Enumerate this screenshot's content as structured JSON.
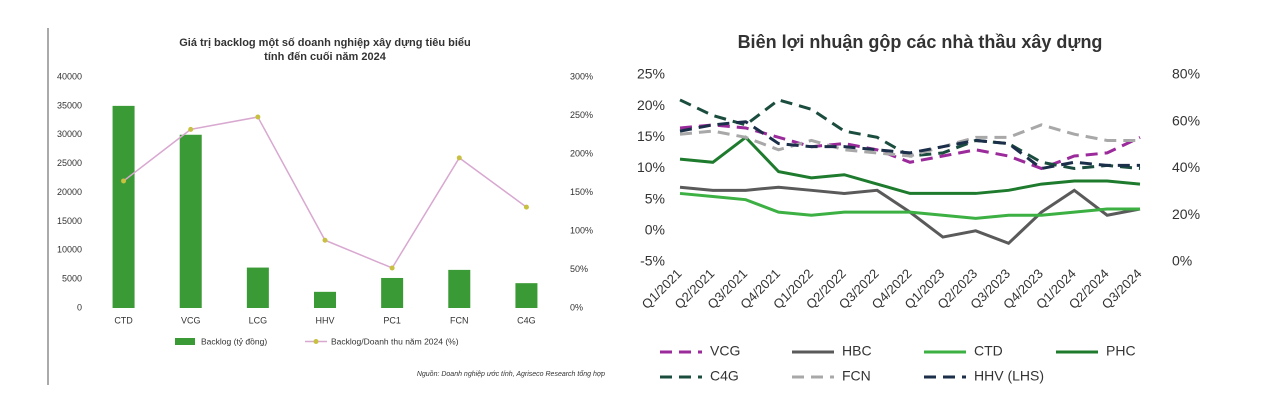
{
  "chart_data": [
    {
      "type": "bar",
      "title": [
        "Giá trị backlog một số doanh nghiệp xây dựng tiêu biểu",
        "tính đến cuối năm 2024"
      ],
      "categories": [
        "CTD",
        "VCG",
        "LCG",
        "HHV",
        "PC1",
        "FCN",
        "C4G"
      ],
      "series": [
        {
          "name": "Backlog (tỷ đồng)",
          "type": "bar",
          "color": "#3a9a35",
          "values": [
            35000,
            30000,
            7000,
            2800,
            5200,
            6600,
            4300
          ]
        },
        {
          "name": "Backlog/Doanh thu năm 2024 (%)",
          "type": "line",
          "axis": "y2",
          "color": "#d8a8d0",
          "marker_color": "#c8c040",
          "values": [
            165,
            232,
            248,
            88,
            52,
            195,
            131
          ]
        }
      ],
      "ylim": [
        0,
        40000
      ],
      "yticks": [
        0,
        5000,
        10000,
        15000,
        20000,
        25000,
        30000,
        35000,
        40000
      ],
      "y2lim": [
        0,
        300
      ],
      "y2ticks": [
        {
          "value": 0,
          "label": "0%"
        },
        {
          "value": 50,
          "label": "50%"
        },
        {
          "value": 100,
          "label": "100%"
        },
        {
          "value": 150,
          "label": "150%"
        },
        {
          "value": 200,
          "label": "200%"
        },
        {
          "value": 250,
          "label": "250%"
        },
        {
          "value": 300,
          "label": "300%"
        }
      ],
      "grid": false,
      "source": "Nguồn: Doanh nghiệp ước tính, Agriseco Research tổng hợp"
    },
    {
      "type": "line",
      "title": "Biên lợi nhuận gộp các nhà thầu xây dựng",
      "categories": [
        "Q1/2021",
        "Q2/2021",
        "Q3/2021",
        "Q4/2021",
        "Q1/2022",
        "Q2/2022",
        "Q3/2022",
        "Q4/2022",
        "Q1/2023",
        "Q2/2023",
        "Q3/2023",
        "Q4/2023",
        "Q1/2024",
        "Q2/2024",
        "Q3/2024"
      ],
      "series": [
        {
          "name": "VCG",
          "color": "#9b2a9b",
          "dashed": true,
          "values": [
            16.5,
            17,
            16.5,
            15,
            13.5,
            14,
            13,
            11,
            12,
            13,
            12,
            10,
            12,
            12.5,
            15
          ]
        },
        {
          "name": "HBC",
          "color": "#5a5a5a",
          "dashed": false,
          "values": [
            7,
            6.5,
            6.5,
            7,
            6.5,
            6,
            6.5,
            3,
            -1,
            0,
            -2,
            3,
            6.5,
            2.5,
            3.5
          ]
        },
        {
          "name": "CTD",
          "color": "#3cb043",
          "dashed": false,
          "values": [
            6,
            5.5,
            5,
            3,
            2.5,
            3,
            3,
            3,
            2.5,
            2,
            2.5,
            2.5,
            3,
            3.5,
            3.5
          ]
        },
        {
          "name": "PHC",
          "color": "#1e7b2e",
          "dashed": false,
          "values": [
            11.5,
            11,
            15,
            9.5,
            8.5,
            9,
            7.5,
            6,
            6,
            6,
            6.5,
            7.5,
            8,
            8,
            7.5
          ]
        },
        {
          "name": "C4G",
          "color": "#1b4d3e",
          "dashed": true,
          "values": [
            21,
            18.5,
            17,
            21,
            19.5,
            16,
            15,
            12,
            12.5,
            14.5,
            14,
            11,
            10,
            10.5,
            10
          ]
        },
        {
          "name": "FCN",
          "color": "#a8a8a8",
          "dashed": true,
          "values": [
            15.5,
            16,
            15,
            13,
            14.5,
            13,
            12.5,
            12,
            13.5,
            15,
            15,
            17,
            15.5,
            14.5,
            14.5
          ]
        },
        {
          "name": "HHV (LHS)",
          "color": "#1b2f4a",
          "dashed": true,
          "values": [
            16,
            17,
            17.5,
            14,
            13.5,
            13.5,
            13,
            12.5,
            13.5,
            14.5,
            14,
            10,
            11,
            10.5,
            10.5
          ]
        }
      ],
      "ylim": [
        -5,
        25
      ],
      "yticks": [
        {
          "value": -5,
          "label": "-5%"
        },
        {
          "value": 0,
          "label": "0%"
        },
        {
          "value": 5,
          "label": "5%"
        },
        {
          "value": 10,
          "label": "10%"
        },
        {
          "value": 15,
          "label": "15%"
        },
        {
          "value": 20,
          "label": "20%"
        },
        {
          "value": 25,
          "label": "25%"
        }
      ],
      "y2lim": [
        0,
        80
      ],
      "y2ticks": [
        {
          "value": 0,
          "label": "0%"
        },
        {
          "value": 20,
          "label": "20%"
        },
        {
          "value": 40,
          "label": "40%"
        },
        {
          "value": 60,
          "label": "60%"
        },
        {
          "value": 80,
          "label": "80%"
        }
      ],
      "grid": false
    }
  ]
}
